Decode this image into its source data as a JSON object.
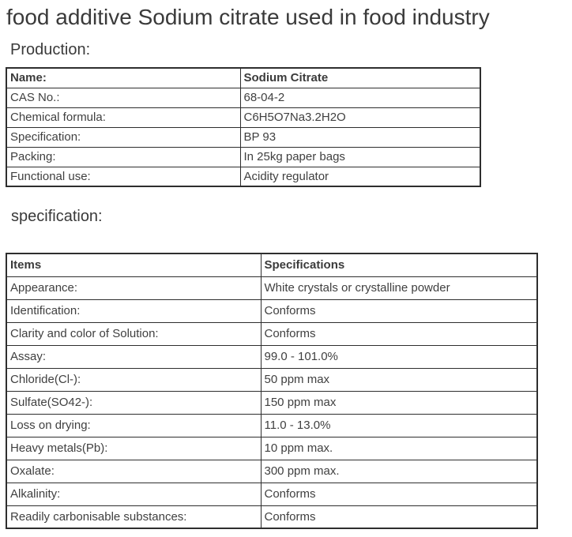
{
  "page": {
    "title": "food additive Sodium citrate used in food industry"
  },
  "colors": {
    "text": "#3f3f3f",
    "border": "#2e2e2e",
    "background": "#ffffff"
  },
  "production": {
    "heading": "Production:",
    "rows": [
      {
        "label": "Name:",
        "value": "Sodium Citrate"
      },
      {
        "label": "CAS No.:",
        "value": "68-04-2"
      },
      {
        "label": "Chemical formula:",
        "value": "C6H5O7Na3.2H2O"
      },
      {
        "label": "Specification:",
        "value": "BP 93"
      },
      {
        "label": "Packing:",
        "value": "In 25kg paper bags"
      },
      {
        "label": "Functional use:",
        "value": "Acidity regulator"
      }
    ]
  },
  "specification": {
    "heading": "specification:",
    "header": {
      "label": "Items",
      "value": "Specifications"
    },
    "rows": [
      {
        "label": "Appearance:",
        "value": "White crystals or crystalline powder"
      },
      {
        "label": "Identification:",
        "value": "Conforms"
      },
      {
        "label": "Clarity and color of Solution:",
        "value": "Conforms"
      },
      {
        "label": "Assay:",
        "value": "99.0 - 101.0%"
      },
      {
        "label": "Chloride(Cl-):",
        "value": "50 ppm max"
      },
      {
        "label": "Sulfate(SO42-):",
        "value": "150 ppm max"
      },
      {
        "label": "Loss on drying:",
        "value": "11.0 - 13.0%"
      },
      {
        "label": "Heavy metals(Pb):",
        "value": "10 ppm max."
      },
      {
        "label": "Oxalate:",
        "value": "300 ppm max."
      },
      {
        "label": "Alkalinity:",
        "value": "Conforms"
      },
      {
        "label": "Readily carbonisable substances:",
        "value": "Conforms"
      }
    ]
  }
}
